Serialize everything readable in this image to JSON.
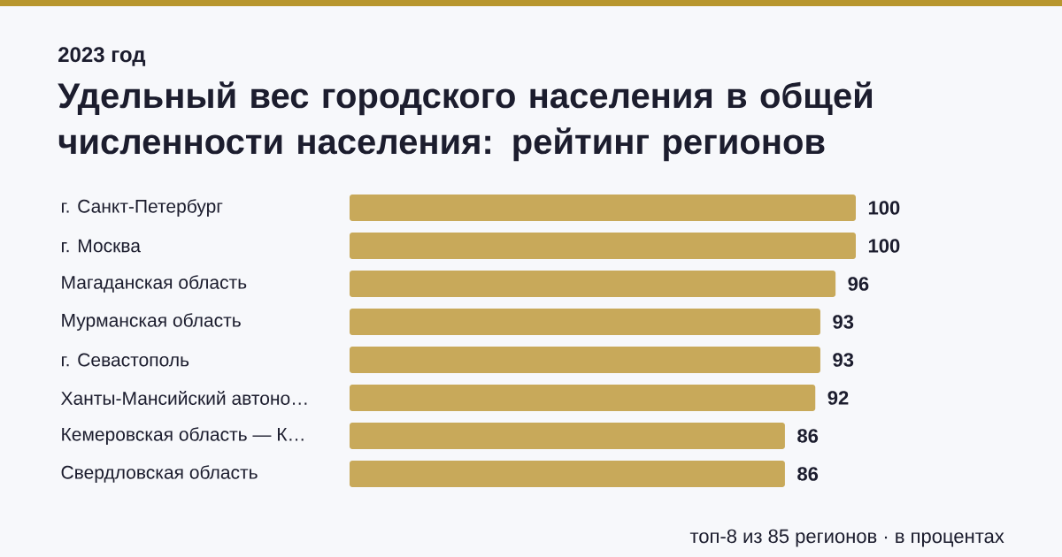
{
  "chart_data": {
    "type": "bar",
    "orientation": "horizontal",
    "subtitle": "2023 год",
    "title": "Удельный вес городского населения в общей численности населения: рейтинг регионов",
    "categories": [
      "г. Санкт-Петербург",
      "г. Москва",
      "Магаданская область",
      "Мурманская область",
      "г. Севастополь",
      "Ханты-Мансийский автоно…",
      "Кемеровская область — К…",
      "Свердловская область"
    ],
    "values": [
      100,
      100,
      96,
      93,
      93,
      92,
      86,
      86
    ],
    "color": "#c8a95a",
    "data_labels": true,
    "annotations": [
      "топ-8 из 85 регионов · в процентах"
    ]
  }
}
